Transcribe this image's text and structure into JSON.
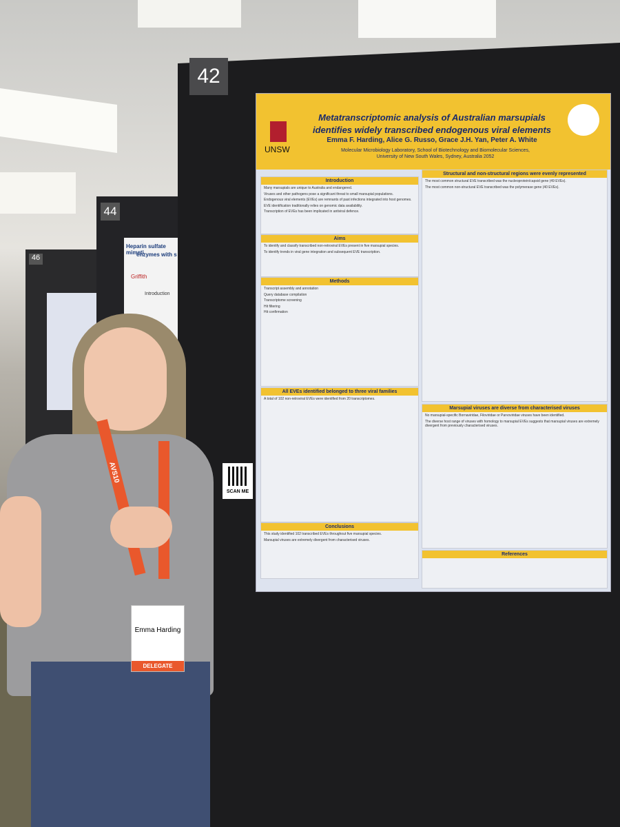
{
  "boards": [
    {
      "number": "42"
    },
    {
      "number": "44"
    },
    {
      "number": "46"
    }
  ],
  "poster": {
    "title": "Metatranscriptomic analysis of Australian marsupials identifies widely transcribed endogenous viral elements",
    "authors": "Emma F. Harding, Alice G. Russo, Grace J.H. Yan, Peter A. White",
    "affiliation": "Molecular Microbiology Laboratory, School of Biotechnology and Biomolecular Sciences, University of New South Wales, Sydney, Australia 2052",
    "logo": "UNSW",
    "sections": [
      {
        "heading": "Introduction",
        "lines": [
          "Many marsupials are unique to Australia and endangered.",
          "Viruses and other pathogens pose a significant threat to small marsupial populations.",
          "Endogenous viral elements (EVEs) are remnants of past infections integrated into host genomes.",
          "EVE identification traditionally relies on genomic data availability.",
          "Transcription of EVEs has been implicated in antiviral defence."
        ]
      },
      {
        "heading": "Aims",
        "lines": [
          "To identify and classify transcribed non-retroviral EVEs present in five marsupial species.",
          "To identify trends in viral gene integration and subsequent EVE transcription."
        ]
      },
      {
        "heading": "Methods",
        "lines": [
          "Transcript assembly and annotation",
          "Query database compilation",
          "Transcriptome screening",
          "Hit filtering",
          "Hit confirmation"
        ]
      },
      {
        "heading": "All EVEs identified belonged to three viral families",
        "lines": [
          "A total of 102 non-retroviral EVEs were identified from 20 transcriptomes."
        ]
      },
      {
        "heading": "Conclusions",
        "lines": [
          "This study identified 102 transcribed EVEs throughout five marsupial species.",
          "Marsupial viruses are extremely divergent from characterised viruses."
        ]
      },
      {
        "heading": "Structural and non-structural regions were evenly represented",
        "lines": [
          "The most common structural EVE transcribed was the nucleoprotein/capsid gene (49 EVEs).",
          "The most common non-structural EVE transcribed was the polymerase gene (40 EVEs)."
        ]
      },
      {
        "heading": "Marsupial viruses are diverse from characterised viruses",
        "lines": [
          "No marsupial-specific Bornaviridae, Filoviridae or Parvoviridae viruses have been identified.",
          "The diverse host range of viruses with homology to marsupial EVEs suggests that marsupial viruses are extremely divergent from previously characterised viruses."
        ]
      },
      {
        "heading": "References",
        "lines": []
      }
    ]
  },
  "neighbor_poster": {
    "title": "Heparin sulfate mimeti",
    "subtitle": "enzymes with s",
    "logo": "Griffith",
    "heading": "Introduction"
  },
  "qr_label": "SCAN ME",
  "badge": {
    "name": "Emma Harding",
    "role": "DELEGATE",
    "lanyard": "AVS10"
  }
}
